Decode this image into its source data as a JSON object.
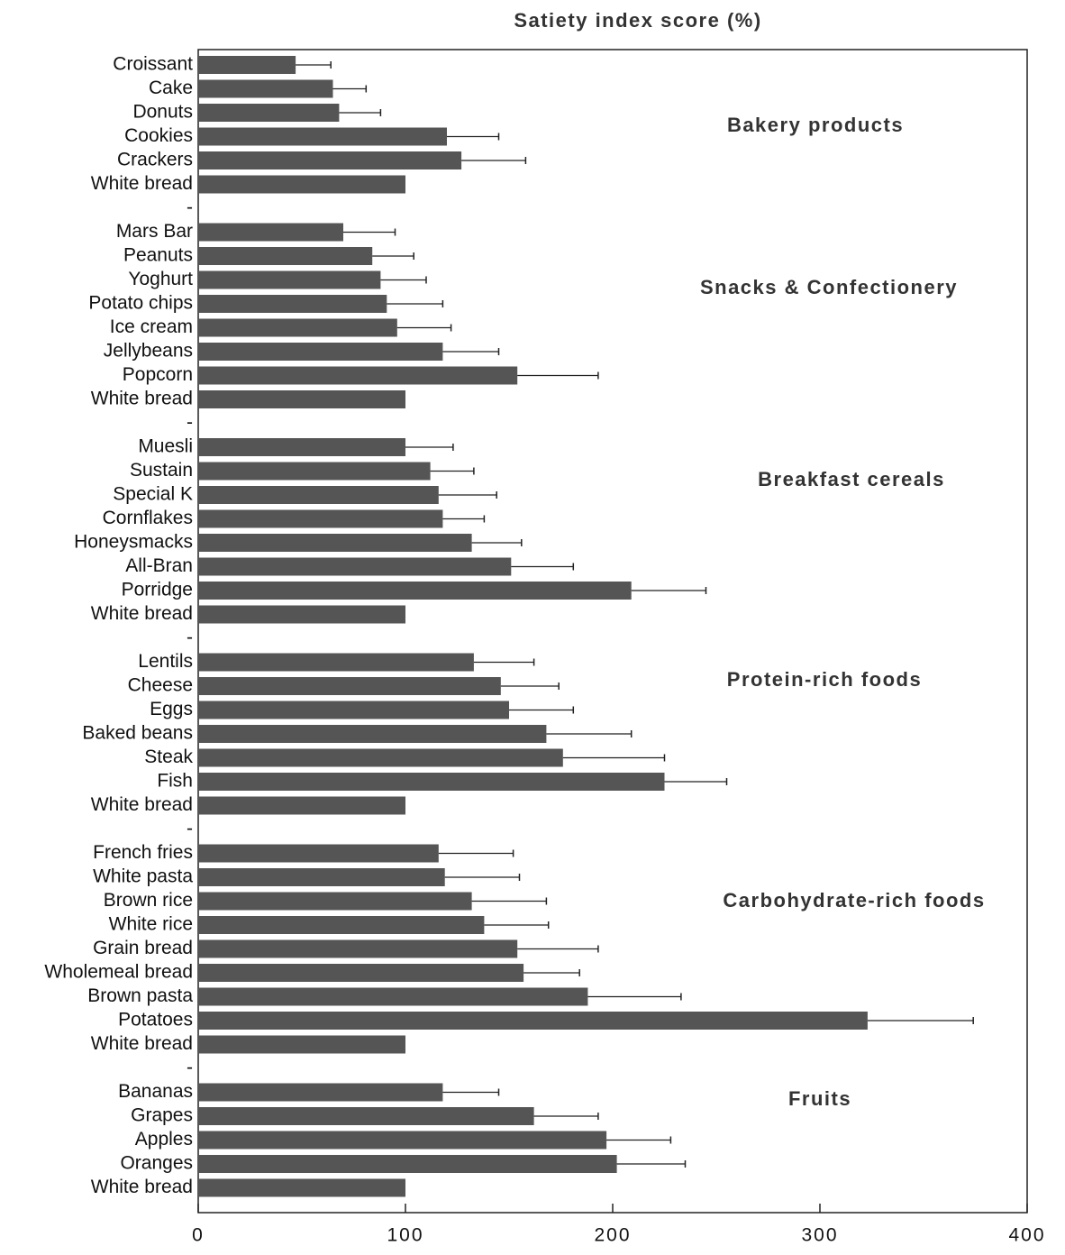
{
  "chart_data": {
    "type": "bar",
    "orientation": "horizontal",
    "title": "Satiety index score (%)",
    "categories": [
      "Croissant",
      "Cake",
      "Donuts",
      "Cookies",
      "Crackers",
      "White bread",
      "-",
      "Mars Bar",
      "Peanuts",
      "Yoghurt",
      "Potato chips",
      "Ice cream",
      "Jellybeans",
      "Popcorn",
      "White bread",
      "-",
      "Muesli",
      "Sustain",
      "Special K",
      "Cornflakes",
      "Honeysmacks",
      "All-Bran",
      "Porridge",
      "White bread",
      "-",
      "Lentils",
      "Cheese",
      "Eggs",
      "Baked beans",
      "Steak",
      "Fish",
      "White bread",
      "-",
      "French fries",
      "White pasta",
      "Brown rice",
      "White rice",
      "Grain bread",
      "Wholemeal bread",
      "Brown pasta",
      "Potatoes",
      "White bread",
      "-",
      "Bananas",
      "Grapes",
      "Apples",
      "Oranges",
      "White bread"
    ],
    "values": [
      47,
      65,
      68,
      120,
      127,
      100,
      null,
      70,
      84,
      88,
      91,
      96,
      118,
      154,
      100,
      null,
      100,
      112,
      116,
      118,
      132,
      151,
      209,
      100,
      null,
      133,
      146,
      150,
      168,
      176,
      225,
      100,
      null,
      116,
      119,
      132,
      138,
      154,
      157,
      188,
      323,
      100,
      null,
      118,
      162,
      197,
      202,
      100
    ],
    "errors": [
      17,
      16,
      20,
      25,
      31,
      null,
      null,
      25,
      20,
      22,
      27,
      26,
      27,
      39,
      null,
      null,
      23,
      21,
      28,
      20,
      24,
      30,
      36,
      null,
      null,
      29,
      28,
      31,
      41,
      49,
      30,
      null,
      null,
      36,
      36,
      36,
      31,
      39,
      27,
      45,
      51,
      null,
      null,
      27,
      31,
      31,
      33,
      null
    ],
    "color": "#555555",
    "xlim": [
      0,
      400
    ],
    "xticks": [
      0,
      100,
      200,
      300,
      400
    ],
    "annotations": [
      "Bakery products",
      "Snacks & Confectionery",
      "Breakfast cereals",
      "Protein-rich foods",
      "Carbohydrate-rich foods",
      "Fruits"
    ]
  }
}
